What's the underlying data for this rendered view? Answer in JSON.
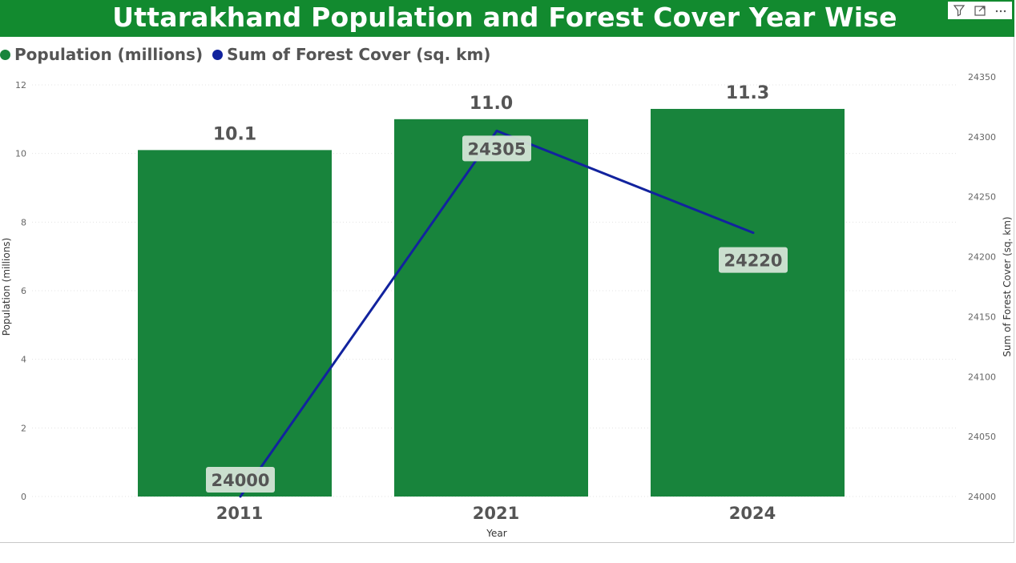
{
  "chart_data": {
    "type": "bar",
    "title": "Uttarakhand Population and Forest Cover Year Wise",
    "categories": [
      "2011",
      "2021",
      "2024"
    ],
    "xlabel": "Year",
    "ylabel": "Population (millions)",
    "y2label": "Sum of Forest Cover (sq. km)",
    "ylim": [
      0,
      12
    ],
    "y2lim": [
      24000,
      24350
    ],
    "yticks": [
      "0",
      "2",
      "4",
      "6",
      "8",
      "10",
      "12"
    ],
    "y2ticks": [
      "24000",
      "24050",
      "24100",
      "24150",
      "24200",
      "24250",
      "24300",
      "24350"
    ],
    "grid": true,
    "legend": "top-left",
    "series": [
      {
        "name": "Population (millions)",
        "type": "bar",
        "axis": "left",
        "values": [
          10.1,
          11.0,
          11.3
        ],
        "labels": [
          "10.1",
          "11.0",
          "11.3"
        ]
      },
      {
        "name": "Sum of Forest Cover (sq. km)",
        "type": "line",
        "axis": "right",
        "values": [
          24000,
          24305,
          24220
        ],
        "labels": [
          "24000",
          "24305",
          "24220"
        ]
      }
    ]
  },
  "colors": {
    "title_background": "#128a2f",
    "bar": "#18843c",
    "line": "#12239e"
  },
  "icons": {
    "filter": "filter-icon",
    "focus": "focus-mode-icon",
    "more": "more-options-icon"
  }
}
